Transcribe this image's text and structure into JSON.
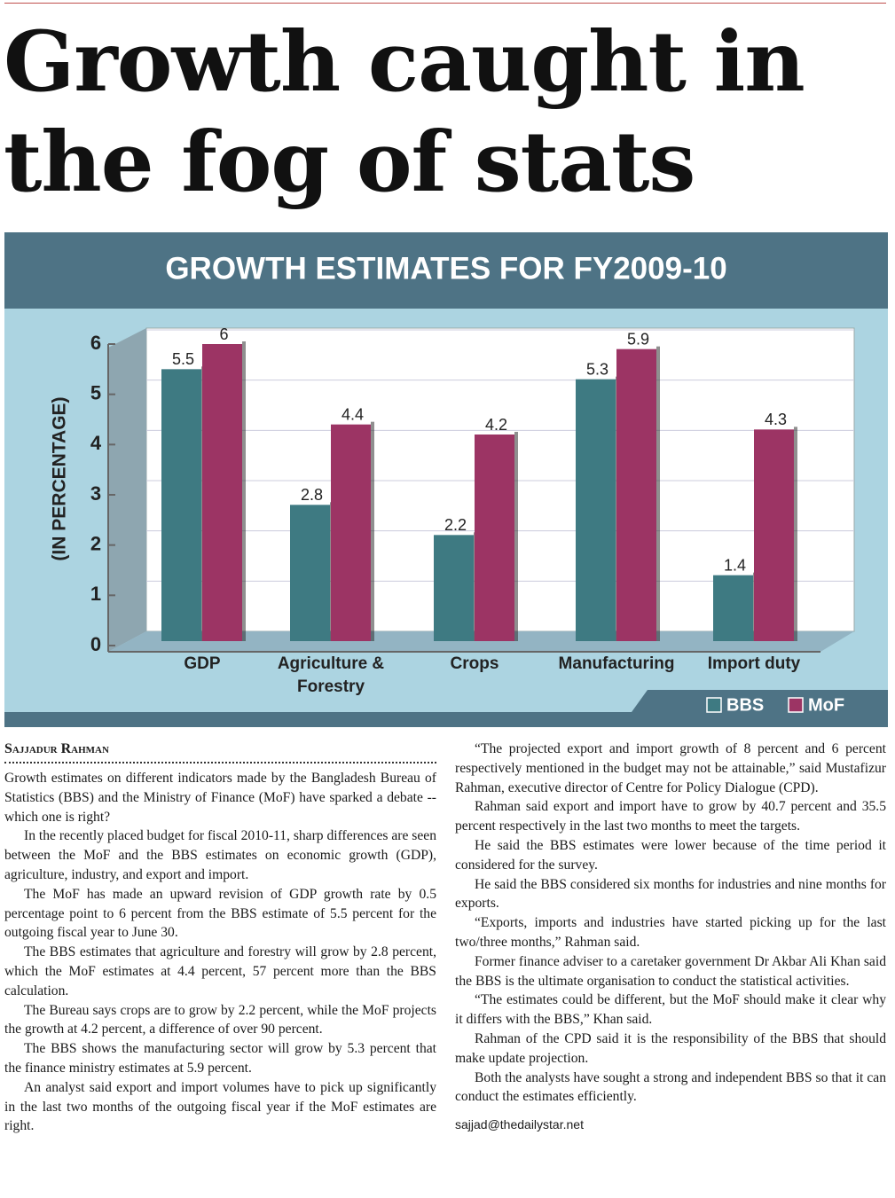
{
  "headline": "Growth caught in the fog of stats",
  "chart_data": {
    "type": "bar",
    "title": "GROWTH ESTIMATES FOR FY2009-10",
    "ylabel": "(IN PERCENTAGE)",
    "categories": [
      "GDP",
      "Agriculture & Forestry",
      "Crops",
      "Manufacturing",
      "Import duty"
    ],
    "series": [
      {
        "name": "BBS",
        "color": "#3e7a82",
        "values": [
          5.5,
          2.8,
          2.2,
          5.3,
          1.4
        ]
      },
      {
        "name": "MoF",
        "color": "#9c3464",
        "values": [
          6,
          4.4,
          4.2,
          5.9,
          4.3
        ]
      }
    ],
    "ylim": [
      0,
      6
    ],
    "yticks": [
      0,
      1,
      2,
      3,
      4,
      5,
      6
    ],
    "grid": true,
    "legend": "bottom-right"
  },
  "byline": "Sajjadur Rahman",
  "columns": [
    [
      "Growth estimates on different indicators made by the Bangladesh Bureau of Statistics (BBS) and the Ministry of Finance (MoF) have sparked a debate -- which one is right?",
      "In the recently placed budget for fiscal 2010-11, sharp differences are seen between the MoF and the BBS estimates on economic growth (GDP), agriculture, industry, and export and import.",
      "The MoF has made an upward revision of GDP growth rate by 0.5 percentage point to 6 percent from the BBS estimate of 5.5 percent for the outgoing fiscal year to June 30.",
      "The BBS estimates that agriculture and forestry will grow by 2.8 percent, which the MoF estimates at 4.4 percent, 57 percent more than the BBS calculation.",
      "The Bureau says crops are to grow by 2.2 percent, while the MoF projects the growth at 4.2 percent, a difference of over 90 percent.",
      "The BBS shows the manufacturing sector will grow by 5.3 percent that the finance ministry estimates at 5.9 percent.",
      "An analyst said export and import volumes have to pick up significantly in the last two months of the outgoing fiscal year if the MoF estimates are right."
    ],
    [
      "“The projected export and import growth of 8 percent and 6 percent respectively mentioned in the budget may not be attainable,” said Mustafizur Rahman, executive director of Centre for Policy Dialogue (CPD).",
      "Rahman said export and import have to grow by 40.7 percent and 35.5 percent respectively in the last two months to meet the targets.",
      "He said the BBS estimates were lower because of the time period it considered for the survey.",
      "He said the BBS considered six months for industries and nine months for exports.",
      "“Exports, imports and industries have started picking up for the last two/three months,” Rahman said.",
      "Former finance adviser to a caretaker government Dr Akbar Ali Khan said the BBS is the ultimate organisation to conduct the statistical activities.",
      "“The estimates could be different, but the MoF should make it clear why it differs with the BBS,” Khan said.",
      "Rahman of the CPD said it is the responsibility of the BBS that should make update projection.",
      "Both the analysts have sought a strong and independent BBS so that it can conduct the estimates efficiently."
    ]
  ],
  "email": "sajjad@thedailystar.net"
}
